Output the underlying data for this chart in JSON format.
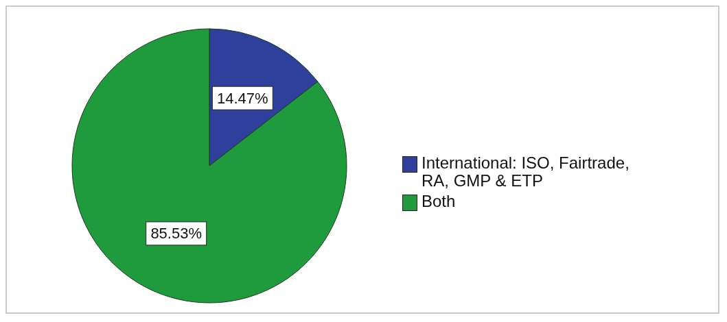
{
  "chart_data": {
    "type": "pie",
    "categories": [
      "International: ISO, Fairtrade, RA, GMP & ETP",
      "Both"
    ],
    "values": [
      14.47,
      85.53
    ],
    "colors": [
      "#2f3f9c",
      "#1f9a3c"
    ],
    "value_labels": [
      "14.47%",
      "85.53%"
    ],
    "legend": "right"
  }
}
